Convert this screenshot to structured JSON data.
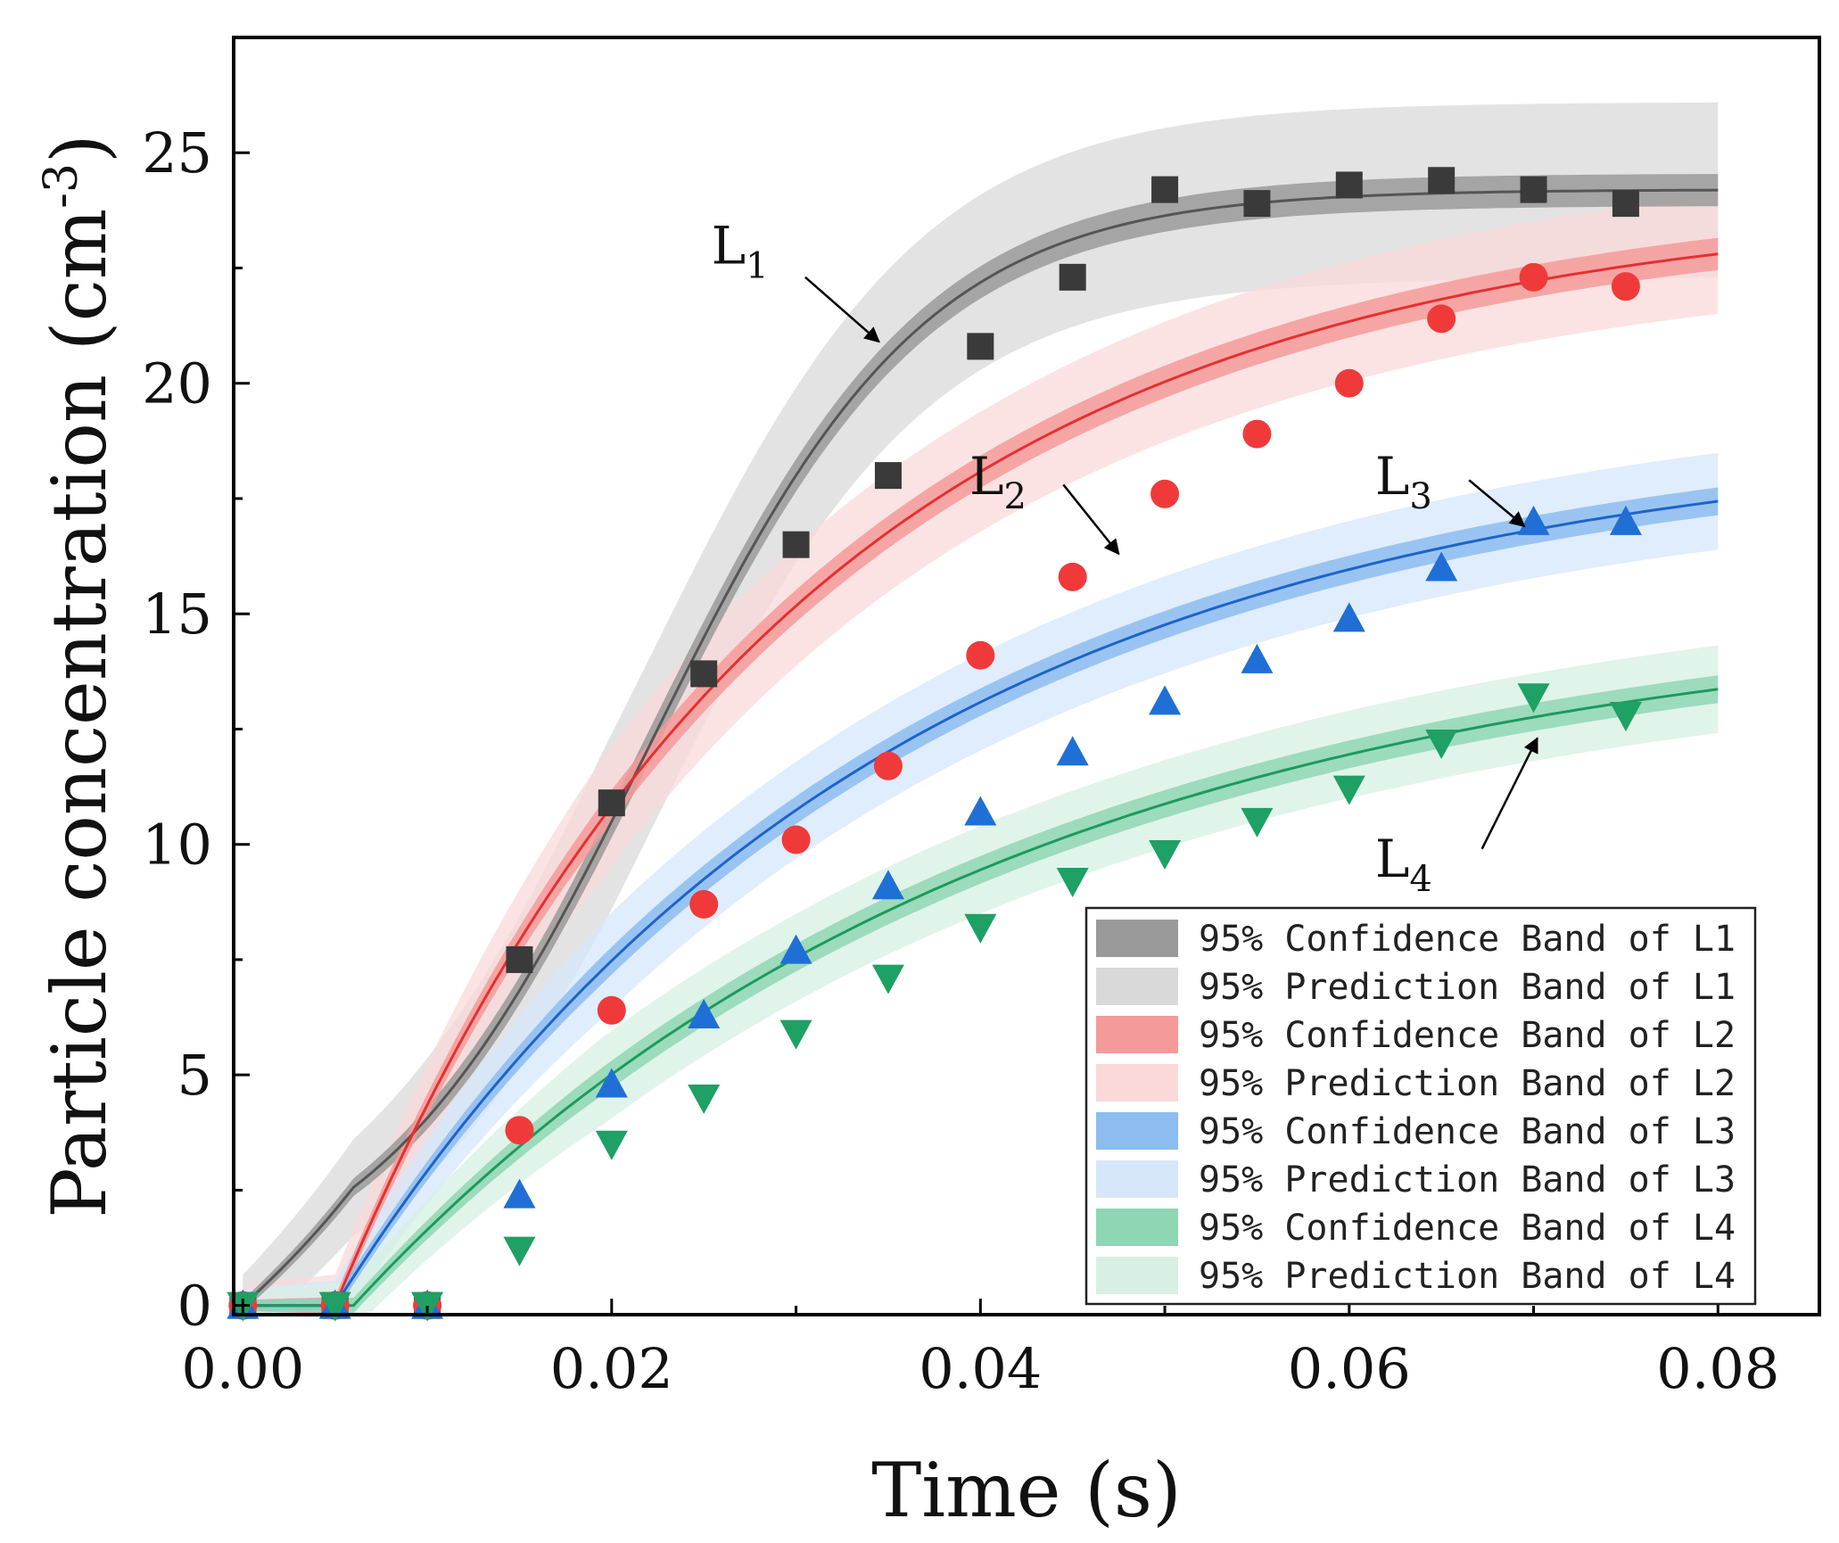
{
  "chart_data": {
    "type": "scatter",
    "xlabel": "Time (s)",
    "ylabel": "Particle concentration (cm",
    "ylabel_sup": "-3",
    "ylabel_close": ")",
    "xlim": [
      -0.0005,
      0.0855
    ],
    "ylim": [
      -0.2,
      27.5
    ],
    "x_ticks": [
      0.0,
      0.02,
      0.04,
      0.06,
      0.08
    ],
    "x_tick_labels": [
      "0.00",
      "0.02",
      "0.04",
      "0.06",
      "0.08"
    ],
    "y_ticks": [
      0,
      5,
      10,
      15,
      20,
      25
    ],
    "y_tick_labels": [
      "0",
      "5",
      "10",
      "15",
      "20",
      "25"
    ],
    "x_fit_range": [
      0.0,
      0.08
    ],
    "series": [
      {
        "name": "L1",
        "label_main": "L",
        "label_sub": "1",
        "marker": "square",
        "color": "#3a3a3a",
        "line_color": "#555555",
        "conf_color": "#9a9a9a",
        "pred_color": "#d9d9d9",
        "fit": {
          "type": "sigmoid",
          "A": 24.2,
          "x0": 0.022,
          "k": 0.0075
        },
        "conf_halfwidth": 0.35,
        "pred_halfwidth": 1.9,
        "x": [
          0.0,
          0.005,
          0.01,
          0.015,
          0.02,
          0.025,
          0.03,
          0.035,
          0.04,
          0.045,
          0.05,
          0.055,
          0.06,
          0.065,
          0.07,
          0.075
        ],
        "y": [
          0,
          0,
          0,
          7.5,
          10.9,
          13.7,
          16.5,
          18.0,
          20.8,
          22.3,
          24.2,
          23.9,
          24.3,
          24.4,
          24.2,
          23.9
        ]
      },
      {
        "name": "L2",
        "label_main": "L",
        "label_sub": "2",
        "marker": "circle",
        "color": "#f03a3a",
        "line_color": "#e53030",
        "conf_color": "#f59a9a",
        "pred_color": "#fbd9d9",
        "fit": {
          "type": "offset_exp",
          "A": 24.0,
          "t0": 0.005,
          "tau": 0.025
        },
        "conf_halfwidth": 0.35,
        "pred_halfwidth": 1.3,
        "x": [
          0.0,
          0.005,
          0.01,
          0.015,
          0.02,
          0.025,
          0.03,
          0.035,
          0.04,
          0.045,
          0.05,
          0.055,
          0.06,
          0.065,
          0.07,
          0.075
        ],
        "y": [
          0,
          0,
          0,
          3.8,
          6.4,
          8.7,
          10.1,
          11.7,
          14.1,
          15.8,
          17.6,
          18.9,
          20.0,
          21.4,
          22.3,
          22.1
        ]
      },
      {
        "name": "L3",
        "label_main": "L",
        "label_sub": "3",
        "marker": "triangle-up",
        "color": "#1f6fd6",
        "line_color": "#1e63c9",
        "conf_color": "#8cbcf0",
        "pred_color": "#d6e7fb",
        "fit": {
          "type": "offset_exp",
          "A": 19.0,
          "t0": 0.005,
          "tau": 0.03
        },
        "conf_halfwidth": 0.3,
        "pred_halfwidth": 1.05,
        "x": [
          0.0,
          0.005,
          0.01,
          0.015,
          0.02,
          0.025,
          0.03,
          0.035,
          0.04,
          0.045,
          0.05,
          0.055,
          0.06,
          0.065,
          0.07,
          0.075
        ],
        "y": [
          0,
          0,
          0,
          2.4,
          4.8,
          6.3,
          7.7,
          9.1,
          10.7,
          12.0,
          13.1,
          14.0,
          14.9,
          16.0,
          17.0,
          17.0
        ]
      },
      {
        "name": "L4",
        "label_main": "L",
        "label_sub": "4",
        "marker": "triangle-down",
        "color": "#1fa064",
        "line_color": "#1c9a5e",
        "conf_color": "#8fd6b4",
        "pred_color": "#d7f0e3",
        "fit": {
          "type": "offset_exp",
          "A": 15.2,
          "t0": 0.006,
          "tau": 0.035
        },
        "conf_halfwidth": 0.3,
        "pred_halfwidth": 0.95,
        "x": [
          0.0,
          0.005,
          0.01,
          0.015,
          0.02,
          0.025,
          0.03,
          0.035,
          0.04,
          0.045,
          0.05,
          0.055,
          0.06,
          0.065,
          0.07,
          0.075
        ],
        "y": [
          0,
          0,
          0,
          1.2,
          3.5,
          4.5,
          5.9,
          7.1,
          8.2,
          9.2,
          9.8,
          10.5,
          11.2,
          12.2,
          13.2,
          12.8
        ]
      }
    ],
    "legend": {
      "position": "bottom-right",
      "entries": [
        {
          "label": "95% Confidence Band of L1",
          "color": "#9a9a9a"
        },
        {
          "label": "95% Prediction Band of L1",
          "color": "#d9d9d9"
        },
        {
          "label": "95% Confidence Band of L2",
          "color": "#f59a9a"
        },
        {
          "label": "95% Prediction Band of L2",
          "color": "#fbd9d9"
        },
        {
          "label": "95% Confidence Band of L3",
          "color": "#8cbcf0"
        },
        {
          "label": "95% Prediction Band of L3",
          "color": "#d6e7fb"
        },
        {
          "label": "95% Confidence Band of L4",
          "color": "#8fd6b4"
        },
        {
          "label": "95% Prediction Band of L4",
          "color": "#d7f0e3"
        }
      ]
    },
    "annotations": [
      {
        "series": "L1",
        "text_x": 0.0285,
        "text_y": 22.6,
        "arrow_from": [
          0.0305,
          22.3
        ],
        "arrow_to": [
          0.0345,
          20.9
        ]
      },
      {
        "series": "L2",
        "text_x": 0.0425,
        "text_y": 17.6,
        "arrow_from": [
          0.0445,
          17.8
        ],
        "arrow_to": [
          0.0475,
          16.3
        ]
      },
      {
        "series": "L3",
        "text_x": 0.0645,
        "text_y": 17.6,
        "arrow_from": [
          0.0665,
          17.9
        ],
        "arrow_to": [
          0.0695,
          16.9
        ]
      },
      {
        "series": "L4",
        "text_x": 0.0645,
        "text_y": 9.3,
        "arrow_from": [
          0.0672,
          9.9
        ],
        "arrow_to": [
          0.0702,
          12.3
        ]
      }
    ]
  }
}
